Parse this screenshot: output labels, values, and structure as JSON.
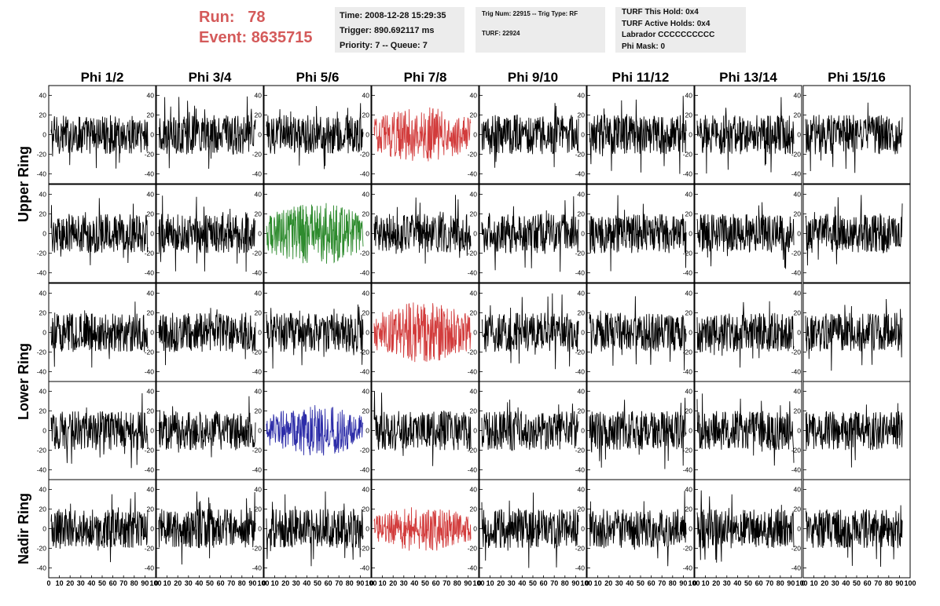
{
  "header": {
    "run_label": "Run:",
    "run_value": "78",
    "event_label": "Event:",
    "event_value": "8635715",
    "run_color": "#d45a5a"
  },
  "time_box": {
    "time": "Time: 2008-12-28 15:29:35",
    "trigger": "Trigger: 890.692117 ms",
    "priority": "Priority: 7 -- Queue: 7"
  },
  "trig_box": {
    "trig": "Trig Num: 22915 -- Trig Type: RF",
    "turf": "TURF: 22924"
  },
  "turf_box": {
    "this_hold": "TURF This Hold: 0x4",
    "active_holds": "TURF Active Holds: 0x4",
    "labrador": "Labrador CCCCCCCCCC",
    "phi_mask": "Phi Mask: 0"
  },
  "chart_data": {
    "type": "line",
    "columns": [
      "Phi 1/2",
      "Phi 3/4",
      "Phi 5/6",
      "Phi 7/8",
      "Phi 9/10",
      "Phi 11/12",
      "Phi 13/14",
      "Phi 15/16"
    ],
    "ring_labels": [
      {
        "text": "Upper Ring",
        "rows": [
          0,
          1
        ]
      },
      {
        "text": "Lower Ring",
        "rows": [
          2,
          3
        ]
      },
      {
        "text": "Nadir Ring",
        "rows": [
          4,
          4
        ]
      }
    ],
    "ylim": [
      -50,
      50
    ],
    "yticks": [
      -40,
      -20,
      0,
      20,
      40
    ],
    "xlim": [
      0,
      100
    ],
    "xticks": [
      0,
      10,
      20,
      30,
      40,
      50,
      60,
      70,
      80,
      90,
      100
    ],
    "x_tick_labels": [
      "0",
      "10",
      "20",
      "30",
      "40",
      "50",
      "60",
      "70",
      "80",
      "90",
      "100"
    ],
    "samples_per_trace": 260,
    "trace_amplitude_range": [
      -45,
      40
    ],
    "highlighted": [
      {
        "row": 0,
        "col": 3,
        "color": "#d23c3c",
        "amplitude": 22
      },
      {
        "row": 1,
        "col": 2,
        "color": "#2e8b2e",
        "amplitude": 25
      },
      {
        "row": 2,
        "col": 3,
        "color": "#d23c3c",
        "amplitude": 24
      },
      {
        "row": 3,
        "col": 2,
        "color": "#2c2ca8",
        "amplitude": 20
      },
      {
        "row": 4,
        "col": 3,
        "color": "#d23c3c",
        "amplitude": 18
      }
    ],
    "default_color": "#000000",
    "grid": false
  }
}
